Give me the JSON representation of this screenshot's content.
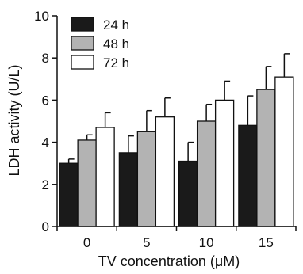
{
  "chart_data": {
    "type": "bar",
    "xlabel": "TV concentration (μM)",
    "ylabel": "LDH activity (U/L)",
    "ylim": [
      0,
      10
    ],
    "yticks": [
      0,
      2,
      4,
      6,
      8,
      10
    ],
    "categories": [
      "0",
      "5",
      "10",
      "15"
    ],
    "series": [
      {
        "name": "24 h",
        "color": "#1a1a1a",
        "values": [
          3.0,
          3.5,
          3.1,
          4.8
        ],
        "errors": [
          0.2,
          0.8,
          0.9,
          1.4
        ]
      },
      {
        "name": "48 h",
        "color": "#b3b3b3",
        "values": [
          4.1,
          4.5,
          5.0,
          6.5
        ],
        "errors": [
          0.25,
          1.0,
          0.8,
          1.1
        ]
      },
      {
        "name": "72 h",
        "color": "#ffffff",
        "values": [
          4.7,
          5.2,
          6.0,
          7.1
        ],
        "errors": [
          0.7,
          0.9,
          0.9,
          1.1
        ]
      }
    ],
    "legend_position": "top-left",
    "grid": false
  }
}
